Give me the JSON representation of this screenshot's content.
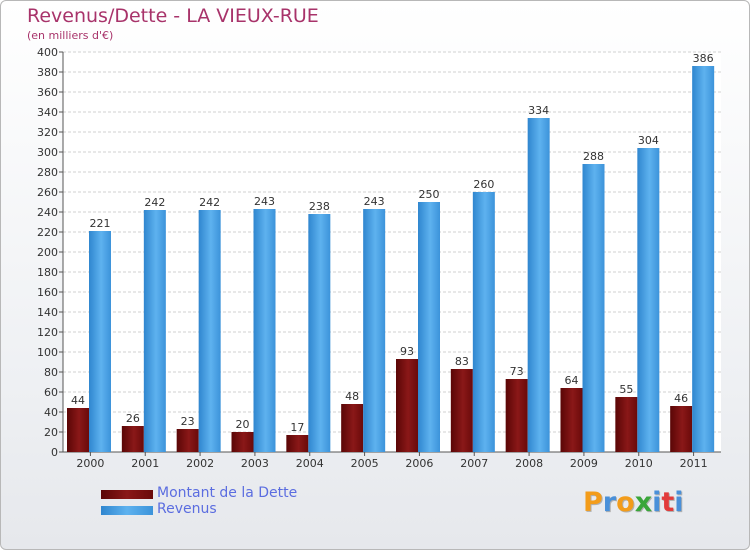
{
  "chart_data": {
    "type": "bar",
    "title": "Revenus/Dette - LA VIEUX-RUE",
    "subtitle": "(en milliers d'€)",
    "categories": [
      "2000",
      "2001",
      "2002",
      "2003",
      "2004",
      "2005",
      "2006",
      "2007",
      "2008",
      "2009",
      "2010",
      "2011"
    ],
    "series": [
      {
        "name": "Montant de la Dette",
        "color": "#7a1010",
        "values": [
          44,
          26,
          23,
          20,
          17,
          48,
          93,
          83,
          73,
          64,
          55,
          46
        ]
      },
      {
        "name": "Revenus",
        "color": "#4aa3e6",
        "values": [
          221,
          242,
          242,
          243,
          238,
          243,
          250,
          260,
          334,
          288,
          304,
          386
        ]
      }
    ],
    "ylim": [
      0,
      400
    ],
    "ytick_step": 20,
    "grid": true,
    "legend_position": "bottom-left"
  },
  "logo": {
    "letters": [
      "P",
      "r",
      "o",
      "x",
      "i",
      "t",
      "i"
    ],
    "colors": [
      "#f39c1a",
      "#4a90d9",
      "#f39c1a",
      "#3aa63a",
      "#4a90d9",
      "#e23b3b",
      "#4a90d9"
    ]
  }
}
